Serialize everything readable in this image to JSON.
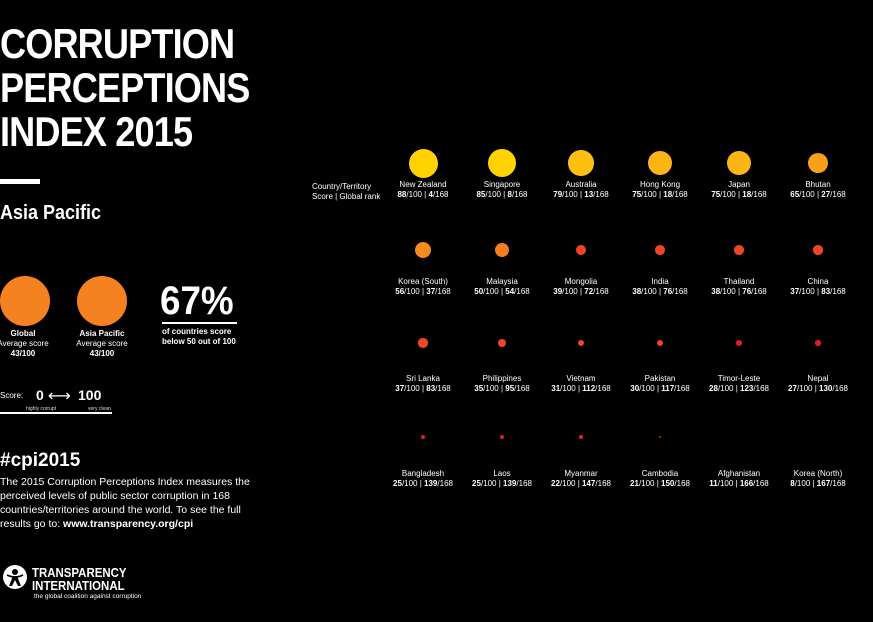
{
  "title": {
    "line1": "CORRUPTION",
    "line2": "PERCEPTIONS",
    "line3": "INDEX 2015"
  },
  "region": "Asia Pacific",
  "averages": [
    {
      "label": "Global",
      "sub": "Average score",
      "score": "43/100",
      "color": "#f58220"
    },
    {
      "label": "Asia Pacific",
      "sub": "Average score",
      "score": "43/100",
      "color": "#f58220"
    }
  ],
  "percentage": {
    "value": "67%",
    "desc1": "of countries score",
    "desc2": "below 50 out of 100"
  },
  "scale": {
    "label": "Score:",
    "min": "0",
    "arrow": "⟷",
    "max": "100",
    "min_label": "highly corrupt",
    "max_label": "very clean"
  },
  "hashtag": "#cpi2015",
  "description": "The 2015 Corruption Perceptions Index measures the perceived levels of public sector corruption in 168 countries/territories around the world. To see the full results go to: ",
  "description_link": "www.transparency.org/cpi",
  "logo": {
    "line1": "TRANSPARENCY",
    "line2": "INTERNATIONAL",
    "tagline": "the global coalition against corruption"
  },
  "legend": {
    "line1": "Country/Territory",
    "line2": "Score | Global rank"
  },
  "countries": [
    {
      "name": "New Zealand",
      "score": "88",
      "max": "/100 | ",
      "rank": "4",
      "total": "/168",
      "value": 88,
      "color": "#ffd200"
    },
    {
      "name": "Singapore",
      "score": "85",
      "max": "/100 | ",
      "rank": "8",
      "total": "/168",
      "value": 85,
      "color": "#ffd200"
    },
    {
      "name": "Australia",
      "score": "79",
      "max": "/100 | ",
      "rank": "13",
      "total": "/168",
      "value": 79,
      "color": "#fdc010"
    },
    {
      "name": "Hong Kong",
      "score": "75",
      "max": "/100 | ",
      "rank": "18",
      "total": "/168",
      "value": 75,
      "color": "#fdb515"
    },
    {
      "name": "Japan",
      "score": "75",
      "max": "/100 | ",
      "rank": "18",
      "total": "/168",
      "value": 75,
      "color": "#fdb515"
    },
    {
      "name": "Bhutan",
      "score": "65",
      "max": "/100 | ",
      "rank": "27",
      "total": "/168",
      "value": 65,
      "color": "#f8a01a"
    },
    {
      "name": "Korea (South)",
      "score": "56",
      "max": "/100 | ",
      "rank": "37",
      "total": "/168",
      "value": 56,
      "color": "#f58a20"
    },
    {
      "name": "Malaysia",
      "score": "50",
      "max": "/100 | ",
      "rank": "54",
      "total": "/168",
      "value": 50,
      "color": "#f47e20"
    },
    {
      "name": "Mongolia",
      "score": "39",
      "max": "/100 | ",
      "rank": "72",
      "total": "/168",
      "value": 39,
      "color": "#ee4526"
    },
    {
      "name": "India",
      "score": "38",
      "max": "/100 | ",
      "rank": "76",
      "total": "/168",
      "value": 38,
      "color": "#ee4526"
    },
    {
      "name": "Thailand",
      "score": "38",
      "max": "/100 | ",
      "rank": "76",
      "total": "/168",
      "value": 38,
      "color": "#ee4526"
    },
    {
      "name": "China",
      "score": "37",
      "max": "/100 | ",
      "rank": "83",
      "total": "/168",
      "value": 37,
      "color": "#ee4526"
    },
    {
      "name": "Sri Lanka",
      "score": "37",
      "max": "/100 | ",
      "rank": "83",
      "total": "/168",
      "value": 37,
      "color": "#ee4526"
    },
    {
      "name": "Philippines",
      "score": "35",
      "max": "/100 | ",
      "rank": "95",
      "total": "/168",
      "value": 35,
      "color": "#ee4526"
    },
    {
      "name": "Vietnam",
      "score": "31",
      "max": "/100 | ",
      "rank": "112",
      "total": "/168",
      "value": 31,
      "color": "#ee4526"
    },
    {
      "name": "Pakistan",
      "score": "30",
      "max": "/100 | ",
      "rank": "117",
      "total": "/168",
      "value": 30,
      "color": "#ee4526"
    },
    {
      "name": "Timor-Leste",
      "score": "28",
      "max": "/100 | ",
      "rank": "123",
      "total": "/168",
      "value": 28,
      "color": "#dc1f26"
    },
    {
      "name": "Nepal",
      "score": "27",
      "max": "/100 | ",
      "rank": "130",
      "total": "/168",
      "value": 27,
      "color": "#dc1f26"
    },
    {
      "name": "Bangladesh",
      "score": "25",
      "max": "/100 | ",
      "rank": "139",
      "total": "/168",
      "value": 25,
      "color": "#dc1f26"
    },
    {
      "name": "Laos",
      "score": "25",
      "max": "/100 | ",
      "rank": "139",
      "total": "/168",
      "value": 25,
      "color": "#dc1f26"
    },
    {
      "name": "Myanmar",
      "score": "22",
      "max": "/100 | ",
      "rank": "147",
      "total": "/168",
      "value": 22,
      "color": "#dc1f26"
    },
    {
      "name": "Cambodia",
      "score": "21",
      "max": "/100 | ",
      "rank": "150",
      "total": "/168",
      "value": 21,
      "color": "#dc1f26"
    },
    {
      "name": "Afghanistan",
      "score": "11",
      "max": "/100 | ",
      "rank": "166",
      "total": "/168",
      "value": 11,
      "color": "#a6191e"
    },
    {
      "name": "Korea (North)",
      "score": "8",
      "max": "/100 | ",
      "rank": "167",
      "total": "/168",
      "value": 8,
      "color": "#8a1516"
    }
  ]
}
